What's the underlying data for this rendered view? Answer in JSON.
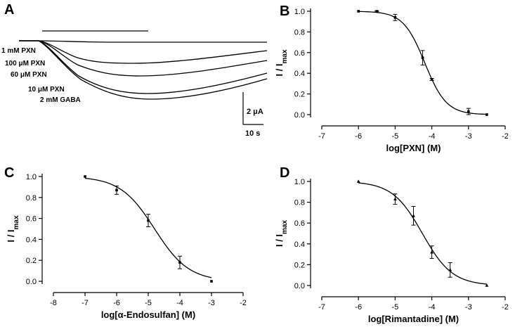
{
  "panel_a": {
    "letter": "A",
    "trace_labels": [
      "1 mM PXN",
      "100 μM PXN",
      "60 μM PXN",
      "10 μM PXN",
      "2 mM GABA"
    ],
    "scale_current": "2 μA",
    "scale_time": "10 s"
  },
  "chart_data": [
    {
      "panel": "B",
      "type": "scatter",
      "xlabel": "log[PXN] (M)",
      "ylabel": "I / Imax",
      "xlim": [
        -7,
        -2
      ],
      "ylim": [
        0.0,
        1.0
      ],
      "xticks": [
        -7,
        -6,
        -5,
        -4,
        -3,
        -2
      ],
      "yticks": [
        0.0,
        0.2,
        0.4,
        0.6,
        0.8,
        1.0
      ],
      "marker": "square",
      "x": [
        -6.0,
        -5.5,
        -5.0,
        -4.25,
        -4.0,
        -3.0,
        -2.5
      ],
      "y": [
        1.0,
        1.0,
        0.94,
        0.55,
        0.34,
        0.03,
        0.0
      ],
      "yerr": [
        0.0,
        0.005,
        0.03,
        0.07,
        0.01,
        0.03,
        0.0
      ],
      "fit_curve": true
    },
    {
      "panel": "C",
      "type": "scatter",
      "xlabel": "log[α-Endosulfan] (M)",
      "ylabel": "I / Imax",
      "xlim": [
        -8,
        -2
      ],
      "ylim": [
        0.0,
        1.0
      ],
      "xticks": [
        -8,
        -7,
        -6,
        -5,
        -4,
        -3,
        -2
      ],
      "yticks": [
        0.0,
        0.2,
        0.4,
        0.6,
        0.8,
        1.0
      ],
      "marker": "square",
      "x": [
        -7.0,
        -6.0,
        -5.0,
        -4.0,
        -3.0
      ],
      "y": [
        1.0,
        0.87,
        0.58,
        0.18,
        0.0
      ],
      "yerr": [
        0.0,
        0.04,
        0.06,
        0.06,
        0.0
      ],
      "fit_curve": true
    },
    {
      "panel": "D",
      "type": "scatter",
      "xlabel": "log[Rimantadine] (M)",
      "ylabel": "I / Imax",
      "xlim": [
        -7,
        -2
      ],
      "ylim": [
        0.0,
        1.0
      ],
      "xticks": [
        -7,
        -6,
        -5,
        -4,
        -3,
        -2
      ],
      "yticks": [
        0.0,
        0.2,
        0.4,
        0.6,
        0.8,
        1.0
      ],
      "marker": "triangle",
      "x": [
        -6.0,
        -5.0,
        -4.5,
        -4.0,
        -3.5,
        -2.5
      ],
      "y": [
        1.0,
        0.83,
        0.67,
        0.32,
        0.15,
        0.0
      ],
      "yerr": [
        0.0,
        0.05,
        0.09,
        0.06,
        0.07,
        0.0
      ],
      "fit_curve": true
    }
  ]
}
